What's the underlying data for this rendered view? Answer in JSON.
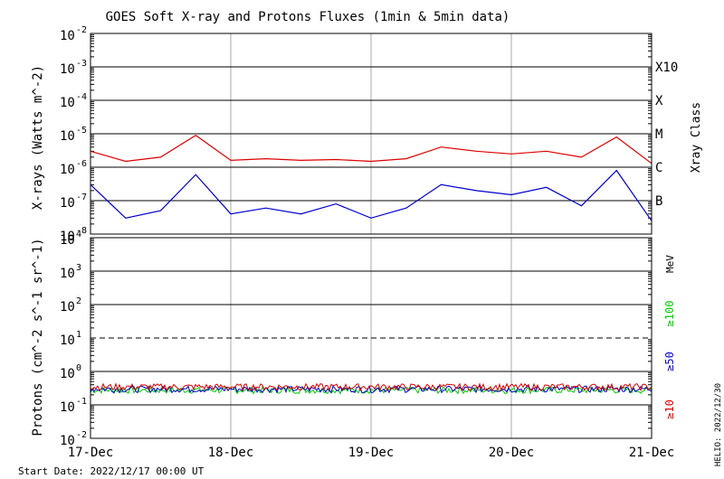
{
  "chart_data": [
    {
      "type": "line",
      "title": "GOES Soft X-ray and Protons Fluxes   (1min & 5min data)",
      "ylabel": "X-rays (Watts m^-2)",
      "yscale": "log",
      "ylim": [
        1e-08,
        0.01
      ],
      "y_ticks": [
        {
          "base": "10",
          "exp": "-2"
        },
        {
          "base": "10",
          "exp": "-3"
        },
        {
          "base": "10",
          "exp": "-4"
        },
        {
          "base": "10",
          "exp": "-5"
        },
        {
          "base": "10",
          "exp": "-6"
        },
        {
          "base": "10",
          "exp": "-7"
        },
        {
          "base": "10",
          "exp": "-8"
        }
      ],
      "right_axis_label": "Xray Class",
      "class_labels": [
        {
          "label": "X10",
          "flux": 0.001
        },
        {
          "label": "X",
          "flux": 0.0001
        },
        {
          "label": "M",
          "flux": 1e-05
        },
        {
          "label": "C",
          "flux": 1e-06
        },
        {
          "label": "B",
          "flux": 1e-07
        }
      ],
      "x": [
        "2022-12-17 00:00",
        "2022-12-17 06:00",
        "2022-12-17 12:00",
        "2022-12-17 18:00",
        "2022-12-18 00:00",
        "2022-12-18 06:00",
        "2022-12-18 12:00",
        "2022-12-18 18:00",
        "2022-12-19 00:00",
        "2022-12-19 06:00",
        "2022-12-19 12:00",
        "2022-12-19 18:00",
        "2022-12-20 00:00",
        "2022-12-20 06:00",
        "2022-12-20 12:00",
        "2022-12-20 18:00",
        "2022-12-21 00:00"
      ],
      "series": [
        {
          "color": "#dd0000",
          "values": [
            3e-06,
            1.5e-06,
            2e-06,
            9e-06,
            1.6e-06,
            1.8e-06,
            1.6e-06,
            1.7e-06,
            1.5e-06,
            1.8e-06,
            4e-06,
            3e-06,
            2.5e-06,
            3e-06,
            2e-06,
            8e-06,
            1.3e-06
          ]
        },
        {
          "color": "#0000cc",
          "values": [
            3e-07,
            3e-08,
            5e-08,
            6e-07,
            4e-08,
            6e-08,
            4e-08,
            8e-08,
            3e-08,
            6e-08,
            3e-07,
            2e-07,
            1.5e-07,
            2.5e-07,
            7e-08,
            8e-07,
            2.5e-08
          ]
        }
      ],
      "grid": true
    },
    {
      "type": "line",
      "ylabel": "Protons (cm^-2 s^-1 sr^-1)",
      "yscale": "log",
      "ylim": [
        0.01,
        10000
      ],
      "y_ticks": [
        {
          "base": "10",
          "exp": "4"
        },
        {
          "base": "10",
          "exp": "3"
        },
        {
          "base": "10",
          "exp": "2"
        },
        {
          "base": "10",
          "exp": "1"
        },
        {
          "base": "10",
          "exp": "0"
        },
        {
          "base": "10",
          "exp": "-1"
        },
        {
          "base": "10",
          "exp": "-2"
        }
      ],
      "threshold": 10,
      "unit_label": "MeV",
      "x": [
        "2022-12-17",
        "2022-12-18",
        "2022-12-19",
        "2022-12-20",
        "2022-12-21"
      ],
      "series": [
        {
          "name": "≥10",
          "color": "#dd0000",
          "values": [
            0.35,
            0.35,
            0.35,
            0.35,
            0.35
          ]
        },
        {
          "name": "≥50",
          "color": "#0000cc",
          "values": [
            0.3,
            0.3,
            0.3,
            0.3,
            0.3
          ]
        },
        {
          "name": "≥100",
          "color": "#00cc00",
          "values": [
            0.28,
            0.28,
            0.28,
            0.28,
            0.28
          ]
        }
      ],
      "x_tick_labels": [
        "17-Dec",
        "18-Dec",
        "19-Dec",
        "20-Dec",
        "21-Dec"
      ],
      "grid": true
    }
  ],
  "footer": {
    "start_date": "Start Date: 2022/12/17 00:00 UT",
    "side_stamp": "HELIO: 2022/12/30"
  }
}
